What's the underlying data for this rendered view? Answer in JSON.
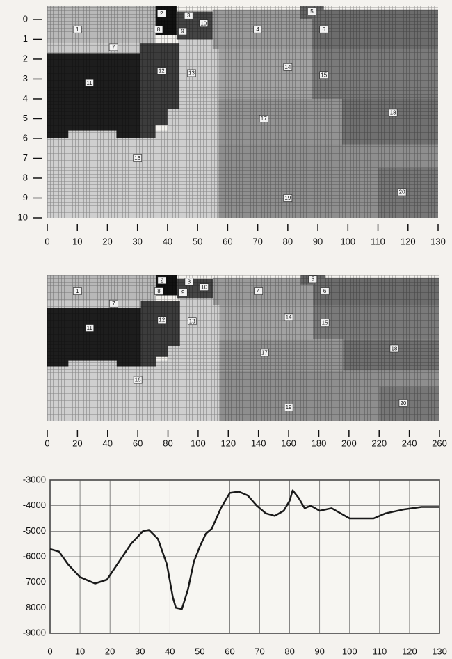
{
  "chart_data": [
    {
      "type": "region-map",
      "xlim": [
        0,
        130
      ],
      "xticks": [
        0,
        10,
        20,
        30,
        40,
        50,
        60,
        70,
        80,
        90,
        100,
        110,
        120,
        130
      ],
      "ylim": [
        -0.7,
        10
      ],
      "yticks": [
        0,
        1,
        2,
        3,
        4,
        5,
        6,
        7,
        8,
        9,
        10
      ],
      "labels": [
        "1",
        "2",
        "3",
        "4",
        "5",
        "6",
        "7",
        "8",
        "9",
        "10",
        "11",
        "12",
        "13",
        "14",
        "15",
        "16",
        "17",
        "18",
        "19",
        "20"
      ]
    },
    {
      "type": "region-map",
      "xlim": [
        0,
        260
      ],
      "xticks": [
        0,
        20,
        40,
        60,
        80,
        100,
        120,
        140,
        160,
        180,
        200,
        220,
        240,
        260
      ],
      "labels": [
        "1",
        "2",
        "3",
        "4",
        "5",
        "6",
        "7",
        "8",
        "9",
        "10",
        "11",
        "12",
        "13",
        "14",
        "15",
        "16",
        "17",
        "18",
        "19",
        "20"
      ]
    },
    {
      "type": "line",
      "xlim": [
        0,
        130
      ],
      "xticks": [
        0,
        10,
        20,
        30,
        40,
        50,
        60,
        70,
        80,
        90,
        100,
        110,
        120,
        130
      ],
      "ylim": [
        -9000,
        -3000
      ],
      "yticks": [
        -3000,
        -4000,
        -5000,
        -6000,
        -7000,
        -8000,
        -9000
      ],
      "grid": true,
      "color": "#1a1a1a",
      "x": [
        0,
        3,
        6,
        10,
        15,
        19,
        23,
        27,
        31,
        33,
        36,
        39,
        41,
        42,
        44,
        46,
        48,
        50,
        52,
        54,
        57,
        60,
        63,
        66,
        69,
        72,
        75,
        78,
        80,
        81,
        83,
        85,
        87,
        90,
        94,
        97,
        100,
        104,
        108,
        112,
        118,
        124,
        130
      ],
      "values": [
        -5700,
        -5800,
        -6300,
        -6800,
        -7050,
        -6900,
        -6200,
        -5500,
        -5000,
        -4950,
        -5300,
        -6300,
        -7600,
        -8000,
        -8050,
        -7300,
        -6200,
        -5600,
        -5100,
        -4900,
        -4100,
        -3500,
        -3450,
        -3600,
        -4000,
        -4300,
        -4400,
        -4200,
        -3800,
        -3400,
        -3700,
        -4100,
        -4000,
        -4200,
        -4100,
        -4300,
        -4500,
        -4500,
        -4500,
        -4300,
        -4150,
        -4050,
        -4050
      ]
    }
  ]
}
